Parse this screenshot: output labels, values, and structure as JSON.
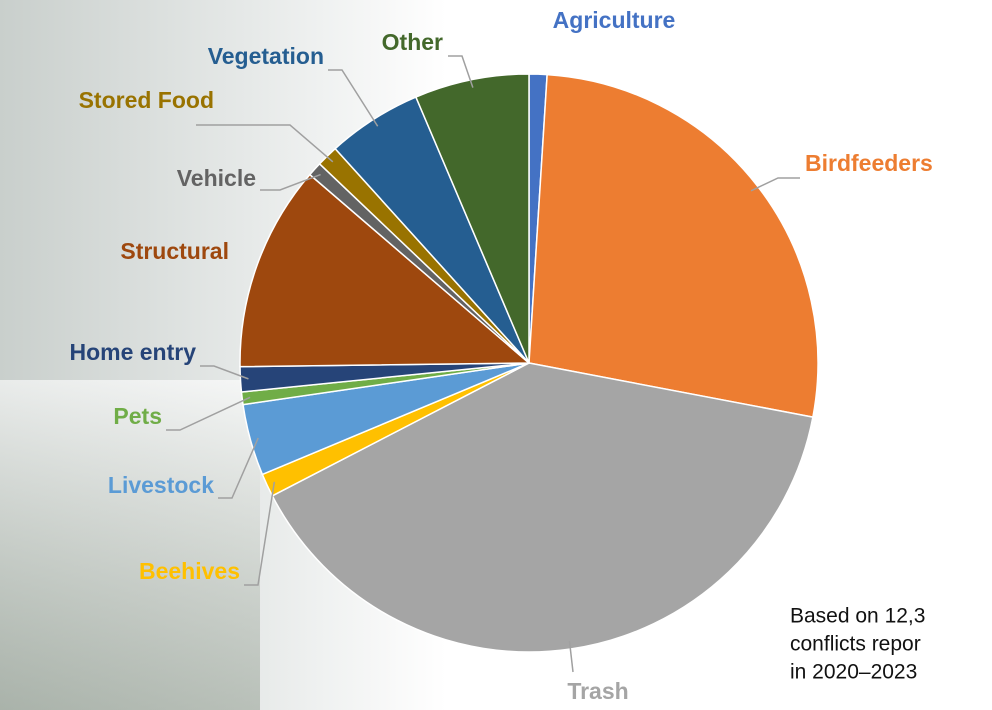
{
  "chart_data": {
    "type": "pie",
    "categories": [
      "Agriculture",
      "Birdfeeders",
      "Trash",
      "Beehives",
      "Livestock",
      "Pets",
      "Home entry",
      "Structural",
      "Vehicle",
      "Stored Food",
      "Vegetation",
      "Other"
    ],
    "values": [
      1,
      27,
      39.4,
      1.3,
      4,
      0.7,
      1.4,
      11.5,
      0.8,
      1.2,
      5.3,
      6.4
    ],
    "colors": [
      "#4472c4",
      "#ed7d31",
      "#a5a5a5",
      "#ffc000",
      "#5b9bd5",
      "#70ad47",
      "#264478",
      "#9e480e",
      "#636363",
      "#997300",
      "#255e91",
      "#43682b"
    ],
    "annotation": [
      "Based on 12,3",
      "conflicts repor",
      "in 2020–2023"
    ]
  }
}
